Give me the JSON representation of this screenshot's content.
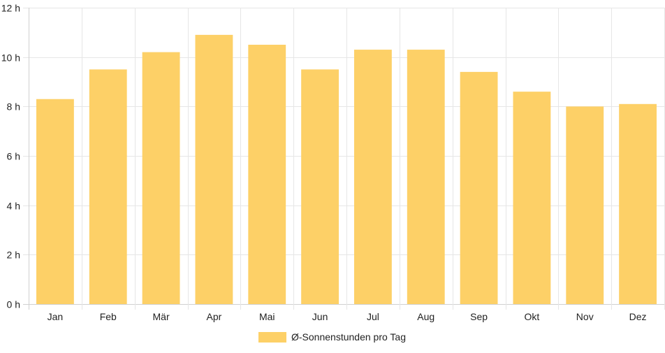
{
  "chart_data": {
    "type": "bar",
    "categories": [
      "Jan",
      "Feb",
      "Mär",
      "Apr",
      "Mai",
      "Jun",
      "Jul",
      "Aug",
      "Sep",
      "Okt",
      "Nov",
      "Dez"
    ],
    "series": [
      {
        "name": "Ø-Sonnenstunden pro Tag",
        "values": [
          8.3,
          9.5,
          10.2,
          10.9,
          10.5,
          9.5,
          10.3,
          10.3,
          9.4,
          8.6,
          8.0,
          8.1
        ],
        "color": "#fdd067"
      }
    ],
    "ylim": [
      0,
      12
    ],
    "yticks": [
      0,
      2,
      4,
      6,
      8,
      10,
      12
    ],
    "ytick_labels": [
      "0 h",
      "2 h",
      "4 h",
      "6 h",
      "8 h",
      "10 h",
      "12 h"
    ],
    "grid": true,
    "legend_position": "bottom-center"
  }
}
